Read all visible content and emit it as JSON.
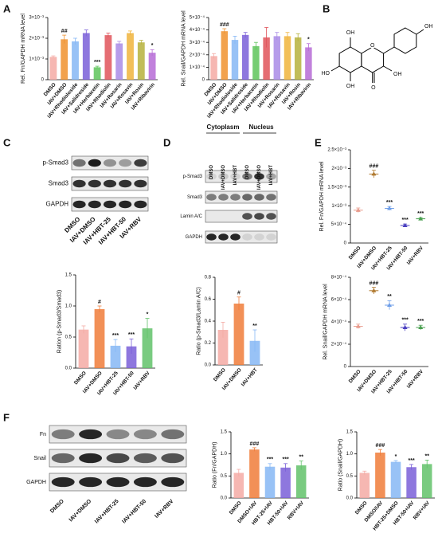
{
  "panels": [
    "A",
    "B",
    "C",
    "D",
    "E",
    "F"
  ],
  "structure_labels": [
    "OH",
    "HO",
    "OH",
    "O",
    "O",
    "OH",
    "OH"
  ],
  "blots": {
    "C": {
      "rows": [
        "p-Smad3",
        "Smad3",
        "GAPDH"
      ],
      "lanes": [
        "DMSO",
        "IAV+DMSO",
        "IAV+HBT-25",
        "IAV+HBT-50",
        "IAV+RBV"
      ]
    },
    "D": {
      "headers": [
        "Cytoplasm",
        "Nucleus"
      ],
      "rows": [
        "p-Smad3",
        "Smad3",
        "Lamin A/C",
        "GAPDH"
      ],
      "lanes": [
        "DMSO",
        "IAV+DMSO",
        "IAV+HBT",
        "DMSO",
        "IAV+DMSO",
        "IAV+HBT"
      ]
    },
    "F": {
      "rows": [
        "Fn",
        "Snail",
        "GAPDH"
      ],
      "lanes": [
        "DMSO",
        "IAV+DMSO",
        "IAV+HBT-25",
        "IAV+HBT-50",
        "IAV+RBV"
      ]
    }
  },
  "chart_data": [
    {
      "type": "bar",
      "ylabel": "Rel. Fn/GAPDH mRNA level",
      "categories": [
        "DMSO",
        "IAV+DMSO",
        "IAV+Rhodioloside",
        "IAV+Salidroside",
        "IAV+Herbacetin",
        "IAV+Rhodiolin",
        "IAV+Rosarin",
        "IAV+Rosavin",
        "IAV+Rosin",
        "IAV+Ribavirin"
      ],
      "values": [
        0.0011,
        0.00195,
        0.00185,
        0.00225,
        0.0006,
        0.00215,
        0.00175,
        0.00225,
        0.0018,
        0.0013
      ],
      "errors": [
        5e-05,
        0.0002,
        0.00015,
        0.00015,
        5e-05,
        0.0001,
        0.0001,
        0.0001,
        0.0001,
        0.00015
      ],
      "annotations": [
        null,
        "##",
        null,
        null,
        "***",
        null,
        null,
        null,
        null,
        "*"
      ],
      "colors": [
        "#f4aaa4",
        "#f0922e",
        "#86b7f5",
        "#7a5fd8",
        "#5ec45a",
        "#e0535a",
        "#a98be6",
        "#f0b43c",
        "#b6b23c",
        "#b66bd6"
      ],
      "ylim": [
        0,
        0.003
      ],
      "yticks": [
        0,
        {
          "value": 0.001,
          "label": "1×10⁻³"
        },
        {
          "value": 0.002,
          "label": "2×10⁻³"
        },
        {
          "value": 0.003,
          "label": "3×10⁻³"
        }
      ]
    },
    {
      "type": "bar",
      "ylabel": "Rel. Snail/GAPDH mRNA level",
      "categories": [
        "DMSO",
        "IAV+DMSO",
        "IAV+Rhodioloside",
        "IAV+Salidroside",
        "IAV+Herbacetin",
        "IAV+Rhodiolin",
        "IAV+Rosarin",
        "IAV+Rosavin",
        "IAV+Rosin",
        "IAV+Ribavirin"
      ],
      "values": [
        0.00019,
        0.00039,
        0.00032,
        0.00036,
        0.00027,
        0.00034,
        0.00035,
        0.00035,
        0.00034,
        0.00026
      ],
      "errors": [
        2e-05,
        2e-05,
        3e-05,
        2e-05,
        3e-05,
        8e-05,
        3e-05,
        3e-05,
        3e-05,
        3e-05
      ],
      "annotations": [
        null,
        "###",
        null,
        null,
        null,
        null,
        null,
        null,
        null,
        "*"
      ],
      "colors": [
        "#f4aaa4",
        "#f0922e",
        "#86b7f5",
        "#7a5fd8",
        "#5ec45a",
        "#e0535a",
        "#a98be6",
        "#f0b43c",
        "#b6b23c",
        "#b66bd6"
      ],
      "ylim": [
        0,
        0.0005
      ],
      "yticks": [
        0,
        {
          "value": 0.0001,
          "label": "1×10⁻⁴"
        },
        {
          "value": 0.0002,
          "label": "2×10⁻⁴"
        },
        {
          "value": 0.0003,
          "label": "3×10⁻⁴"
        },
        {
          "value": 0.0004,
          "label": "4×10⁻⁴"
        },
        {
          "value": 0.0005,
          "label": "5×10⁻⁴"
        }
      ]
    },
    {
      "type": "bar",
      "ylabel": "Ration (p-Smad3/Smad3)",
      "categories": [
        "DMSO",
        "IAV+DMSO",
        "IAV+HBT-25",
        "IAV+HBT-50",
        "IAV+RBV"
      ],
      "values": [
        0.62,
        0.95,
        0.36,
        0.35,
        0.64
      ],
      "errors": [
        0.06,
        0.05,
        0.1,
        0.12,
        0.16
      ],
      "annotations": [
        null,
        "#",
        "***",
        "***",
        "*"
      ],
      "colors": [
        "#f4aaa4",
        "#f07c3a",
        "#86b7f5",
        "#7a5fd8",
        "#62c26a"
      ],
      "ylim": [
        0,
        1.5
      ],
      "yticks": [
        {
          "value": 0,
          "label": "0.0"
        },
        {
          "value": 0.5,
          "label": "0.5"
        },
        {
          "value": 1,
          "label": "1.0"
        },
        {
          "value": 1.5,
          "label": "1.5"
        }
      ]
    },
    {
      "type": "bar",
      "ylabel": "Ratio (p-Smad3/Lamin A/C)",
      "categories": [
        "DMSO",
        "IAV+DMSO",
        "IAV+HBT"
      ],
      "values": [
        0.32,
        0.56,
        0.22
      ],
      "errors": [
        0.07,
        0.06,
        0.1
      ],
      "annotations": [
        null,
        "#",
        "**"
      ],
      "colors": [
        "#f4aaa4",
        "#f07c3a",
        "#86b7f5"
      ],
      "ylim": [
        0,
        0.8
      ],
      "yticks": [
        {
          "value": 0,
          "label": "0.0"
        },
        0.2,
        0.4,
        0.6,
        0.8
      ]
    },
    {
      "type": "dot",
      "ylabel": "Rel. Fn/GAPDH mRNA level",
      "categories": [
        "DMSO",
        "IAV+DMSO",
        "IAV+HBT-25",
        "IAV+HBT-50",
        "IAV+RBV"
      ],
      "values": [
        0.00088,
        0.00185,
        0.00093,
        0.00047,
        0.00065
      ],
      "errors": [
        6e-05,
        0.0001,
        5e-05,
        4e-05,
        3e-05
      ],
      "annotations": [
        null,
        "###",
        "***",
        "***",
        "***"
      ],
      "colors": [
        "#e89b8c",
        "#b07a30",
        "#6e9ee8",
        "#4a3fc0",
        "#4aa050"
      ],
      "ylim": [
        0,
        0.0025
      ],
      "yticks": [
        0,
        {
          "value": 0.0005,
          "label": "5×10⁻⁴"
        },
        {
          "value": 0.001,
          "label": "1×10⁻³"
        },
        {
          "value": 0.0015,
          "label": "1.5×10⁻³"
        },
        {
          "value": 0.002,
          "label": "2×10⁻³"
        },
        {
          "value": 0.0025,
          "label": "2.5×10⁻³"
        }
      ]
    },
    {
      "type": "dot",
      "ylabel": "Rel. Snail/GAPDH mRNA level",
      "categories": [
        "DMSO",
        "IAV+DMSO",
        "IAV+HBT-25",
        "IAV+HBT-50",
        "IAV+RBV"
      ],
      "values": [
        0.00036,
        0.00068,
        0.00055,
        0.00035,
        0.00035
      ],
      "errors": [
        2e-05,
        3e-05,
        4e-05,
        3e-05,
        2e-05
      ],
      "annotations": [
        null,
        "###",
        "**",
        "***",
        "***"
      ],
      "colors": [
        "#e89b8c",
        "#b07a30",
        "#6e9ee8",
        "#4a3fc0",
        "#4aa050"
      ],
      "ylim": [
        0,
        0.0008
      ],
      "yticks": [
        0,
        {
          "value": 0.0002,
          "label": "2×10⁻⁴"
        },
        {
          "value": 0.0004,
          "label": "4×10⁻⁴"
        },
        {
          "value": 0.0006,
          "label": "6×10⁻⁴"
        },
        {
          "value": 0.0008,
          "label": "8×10⁻⁴"
        }
      ]
    },
    {
      "type": "bar",
      "ylabel": "Ratio (Fn/GAPDH)",
      "categories": [
        "DMSO",
        "DMSO+IAV",
        "HBT-25+IAV",
        "HBT-50+IAV",
        "RBV+IAV"
      ],
      "values": [
        0.57,
        1.1,
        0.71,
        0.69,
        0.74
      ],
      "errors": [
        0.08,
        0.04,
        0.07,
        0.09,
        0.1
      ],
      "annotations": [
        null,
        "###",
        "***",
        "***",
        "**"
      ],
      "colors": [
        "#f4aaa4",
        "#f07c3a",
        "#86b7f5",
        "#7a5fd8",
        "#62c26a"
      ],
      "ylim": [
        0,
        1.5
      ],
      "yticks": [
        {
          "value": 0,
          "label": "0.0"
        },
        {
          "value": 0.5,
          "label": "0.5"
        },
        {
          "value": 1,
          "label": "1.0"
        },
        {
          "value": 1.5,
          "label": "1.5"
        }
      ]
    },
    {
      "type": "bar",
      "ylabel": "Ratio (Snail/GAPDH)",
      "categories": [
        "DMSO",
        "DMSO/IAV",
        "HBT-25+DMSO",
        "HBT-50+IAV",
        "RBV+IAV"
      ],
      "values": [
        0.57,
        1.03,
        0.82,
        0.7,
        0.77
      ],
      "errors": [
        0.04,
        0.07,
        0.03,
        0.06,
        0.09
      ],
      "annotations": [
        null,
        "###",
        "*",
        "***",
        "**"
      ],
      "colors": [
        "#f4aaa4",
        "#f07c3a",
        "#86b7f5",
        "#7a5fd8",
        "#62c26a"
      ],
      "ylim": [
        0,
        1.5
      ],
      "yticks": [
        {
          "value": 0,
          "label": "0.0"
        },
        {
          "value": 0.5,
          "label": "0.5"
        },
        {
          "value": 1,
          "label": "1.0"
        },
        {
          "value": 1.5,
          "label": "1.5"
        }
      ]
    }
  ]
}
